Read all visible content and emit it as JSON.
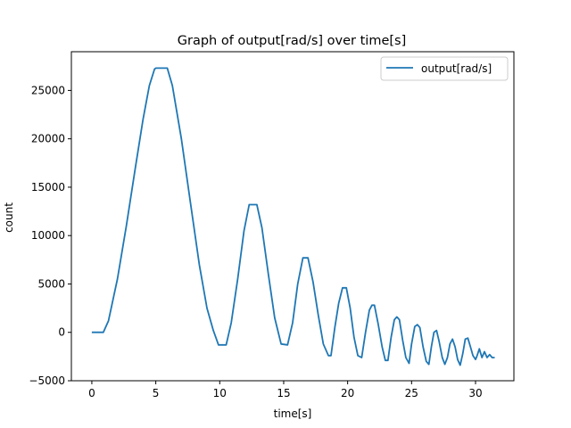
{
  "chart_data": {
    "type": "line",
    "title": "Graph of output[rad/s] over time[s]",
    "xlabel": "time[s]",
    "ylabel": "count",
    "xlim": [
      -1.6,
      33.0
    ],
    "ylim": [
      -5000,
      29000
    ],
    "xticks": [
      0,
      5,
      10,
      15,
      20,
      25,
      30
    ],
    "yticks": [
      -5000,
      0,
      5000,
      10000,
      15000,
      20000,
      25000
    ],
    "grid": false,
    "legend_position": "top-right",
    "series": [
      {
        "name": "output[rad/s]",
        "color": "#1f77b4",
        "points": [
          [
            0.0,
            0
          ],
          [
            0.9,
            0
          ],
          [
            1.3,
            1200
          ],
          [
            2.0,
            5500
          ],
          [
            2.7,
            11000
          ],
          [
            3.4,
            17000
          ],
          [
            4.0,
            22000
          ],
          [
            4.5,
            25500
          ],
          [
            4.9,
            27200
          ],
          [
            5.0,
            27300
          ],
          [
            5.9,
            27300
          ],
          [
            6.3,
            25500
          ],
          [
            7.0,
            20000
          ],
          [
            7.7,
            13500
          ],
          [
            8.4,
            7000
          ],
          [
            9.0,
            2500
          ],
          [
            9.5,
            200
          ],
          [
            9.9,
            -1300
          ],
          [
            10.5,
            -1300
          ],
          [
            10.9,
            1000
          ],
          [
            11.4,
            5500
          ],
          [
            11.9,
            10500
          ],
          [
            12.3,
            13200
          ],
          [
            12.9,
            13200
          ],
          [
            13.3,
            10800
          ],
          [
            13.8,
            6000
          ],
          [
            14.3,
            1500
          ],
          [
            14.8,
            -1200
          ],
          [
            15.3,
            -1300
          ],
          [
            15.7,
            1000
          ],
          [
            16.1,
            5000
          ],
          [
            16.5,
            7700
          ],
          [
            16.9,
            7700
          ],
          [
            17.3,
            5200
          ],
          [
            17.7,
            1800
          ],
          [
            18.1,
            -1200
          ],
          [
            18.5,
            -2400
          ],
          [
            18.7,
            -2400
          ],
          [
            19.0,
            500
          ],
          [
            19.3,
            3000
          ],
          [
            19.6,
            4600
          ],
          [
            19.9,
            4600
          ],
          [
            20.2,
            2500
          ],
          [
            20.5,
            -500
          ],
          [
            20.8,
            -2400
          ],
          [
            21.1,
            -2600
          ],
          [
            21.4,
            0
          ],
          [
            21.7,
            2300
          ],
          [
            21.9,
            2800
          ],
          [
            22.1,
            2800
          ],
          [
            22.4,
            800
          ],
          [
            22.7,
            -1500
          ],
          [
            22.95,
            -2900
          ],
          [
            23.15,
            -2900
          ],
          [
            23.4,
            -500
          ],
          [
            23.65,
            1300
          ],
          [
            23.85,
            1600
          ],
          [
            24.05,
            1300
          ],
          [
            24.3,
            -800
          ],
          [
            24.55,
            -2600
          ],
          [
            24.8,
            -3200
          ],
          [
            25.0,
            -1200
          ],
          [
            25.25,
            600
          ],
          [
            25.45,
            800
          ],
          [
            25.65,
            500
          ],
          [
            25.9,
            -1500
          ],
          [
            26.15,
            -3000
          ],
          [
            26.35,
            -3300
          ],
          [
            26.55,
            -1500
          ],
          [
            26.75,
            0
          ],
          [
            26.95,
            200
          ],
          [
            27.15,
            -900
          ],
          [
            27.4,
            -2600
          ],
          [
            27.6,
            -3300
          ],
          [
            27.8,
            -2600
          ],
          [
            28.0,
            -1200
          ],
          [
            28.2,
            -700
          ],
          [
            28.4,
            -1500
          ],
          [
            28.6,
            -2800
          ],
          [
            28.8,
            -3400
          ],
          [
            29.0,
            -2200
          ],
          [
            29.2,
            -700
          ],
          [
            29.4,
            -600
          ],
          [
            29.6,
            -1500
          ],
          [
            29.8,
            -2400
          ],
          [
            30.0,
            -2800
          ],
          [
            30.1,
            -2500
          ],
          [
            30.3,
            -1700
          ],
          [
            30.5,
            -2600
          ],
          [
            30.7,
            -2000
          ],
          [
            30.9,
            -2600
          ],
          [
            31.1,
            -2300
          ],
          [
            31.3,
            -2600
          ],
          [
            31.5,
            -2600
          ]
        ]
      }
    ]
  }
}
